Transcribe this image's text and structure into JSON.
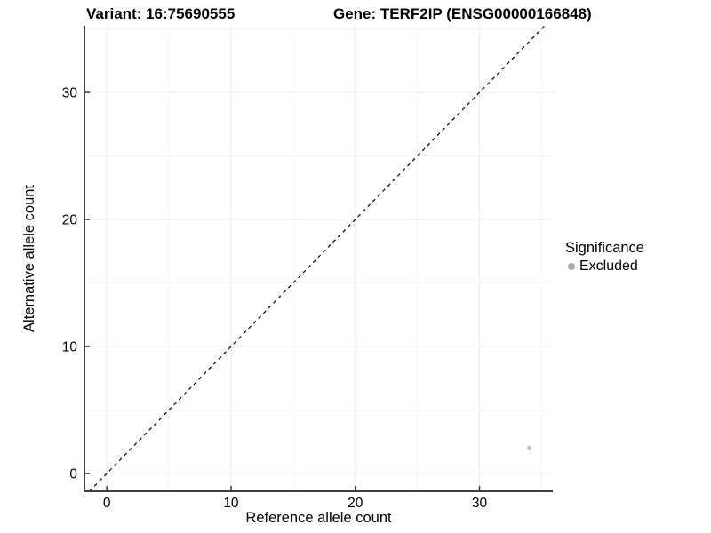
{
  "header": {
    "left_title": "Variant: 16:75690555",
    "right_title": "Gene: TERF2IP (ENSG00000166848)"
  },
  "chart_data": {
    "type": "scatter",
    "xlabel": "Reference allele count",
    "ylabel": "Alternative allele count",
    "xlim": [
      -1.8,
      35.9
    ],
    "ylim": [
      -1.4,
      35.25
    ],
    "xticks": [
      0,
      10,
      20,
      30
    ],
    "yticks": [
      0,
      10,
      20,
      30
    ],
    "minor_xticks": [
      5,
      15,
      25,
      35
    ],
    "minor_yticks": [
      5,
      15,
      25,
      35
    ],
    "grid": true,
    "legend_position": "right",
    "series": [
      {
        "name": "Excluded",
        "color": "#c3c3c3",
        "points": [
          {
            "x": 34,
            "y": 2
          }
        ]
      }
    ],
    "reference_line": {
      "slope": 1,
      "intercept": 0,
      "style": "dashed",
      "color": "#000000"
    }
  },
  "legend": {
    "title": "Significance",
    "items": [
      {
        "label": "Excluded",
        "marker_color": "#ababab"
      }
    ]
  },
  "colors": {
    "background": "#ffffff",
    "title_text": "#000000",
    "axis_line": "#404040",
    "tick_mark": "#333333",
    "tick_label": "#000000",
    "grid_major": "#ececec",
    "grid_minor": "#f4f4f4",
    "point": "#c3c3c3",
    "legend_marker": "#ababab"
  }
}
